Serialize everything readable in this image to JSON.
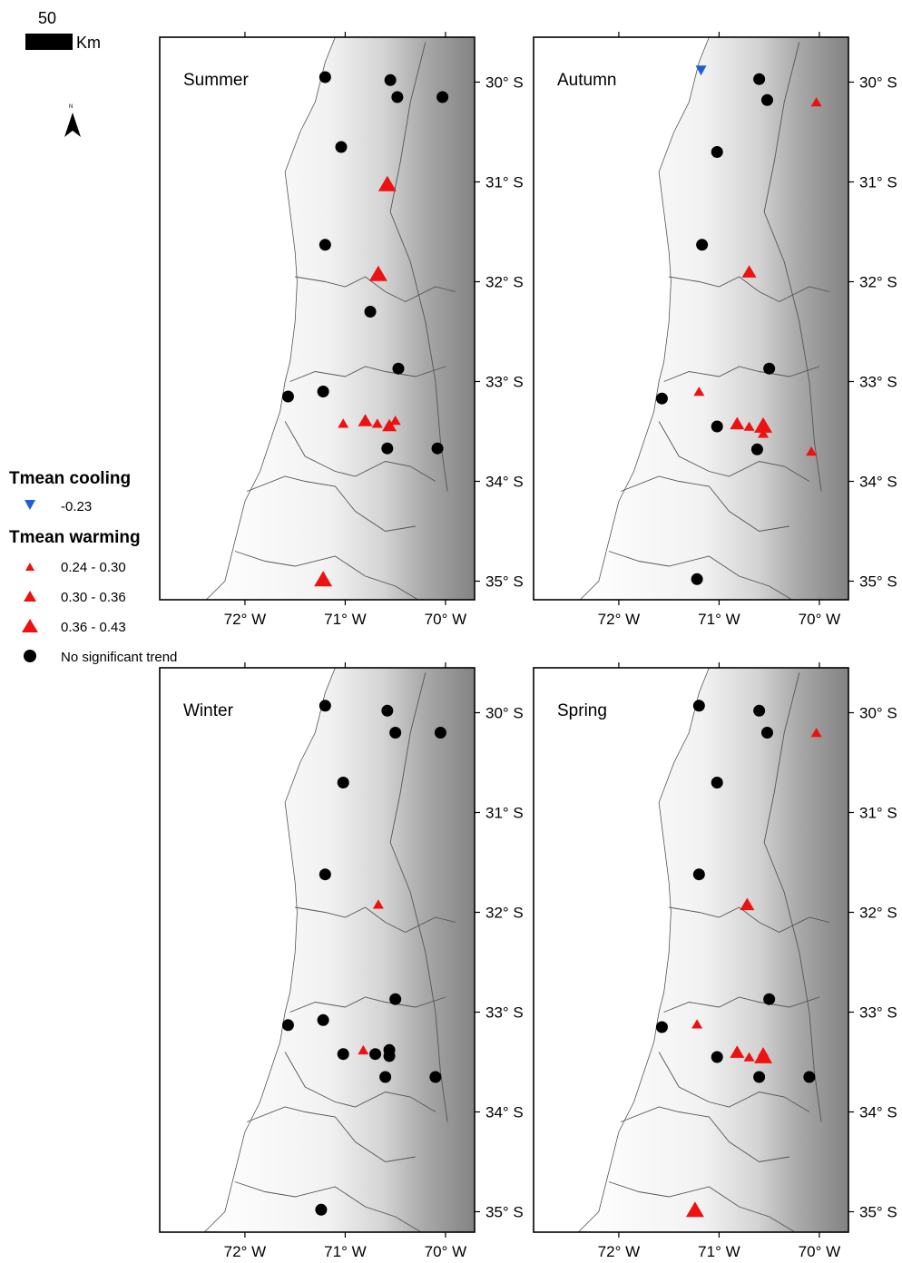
{
  "scale_bar": {
    "value": "50",
    "unit": "Km"
  },
  "north_arrow": {
    "label": "N",
    "icon": "north-arrow-icon"
  },
  "axes": {
    "lon_ticks": [
      {
        "lon": -72,
        "label": "72° W"
      },
      {
        "lon": -71,
        "label": "71° W"
      },
      {
        "lon": -70,
        "label": "70° W"
      }
    ],
    "lat_ticks": [
      {
        "lat": -30,
        "label": "30° S"
      },
      {
        "lat": -31,
        "label": "31° S"
      },
      {
        "lat": -32,
        "label": "32° S"
      },
      {
        "lat": -33,
        "label": "33° S"
      },
      {
        "lat": -34,
        "label": "34° S"
      },
      {
        "lat": -35,
        "label": "35° S"
      }
    ]
  },
  "legend": {
    "cooling_title": "Tmean cooling",
    "cooling_items": [
      {
        "label": "-0.23",
        "symbol": "triangle-down",
        "color": "#1f5fd6"
      }
    ],
    "warming_title": "Tmean warming",
    "warming_items": [
      {
        "label": "0.24 - 0.30",
        "symbol": "triangle-up",
        "size": "small",
        "color": "#ee1111"
      },
      {
        "label": "0.30 - 0.36",
        "symbol": "triangle-up",
        "size": "medium",
        "color": "#ee1111"
      },
      {
        "label": "0.36 - 0.43",
        "symbol": "triangle-up",
        "size": "large",
        "color": "#ee1111"
      }
    ],
    "no_trend": {
      "label": "No significant trend",
      "symbol": "circle",
      "color": "#000000"
    }
  },
  "colors": {
    "warming": "#ee1111",
    "cooling": "#1f5fd6",
    "no_trend": "#000000"
  },
  "panels": [
    {
      "title": "Summer",
      "stations": [
        {
          "lon": -71.2,
          "lat": -29.95,
          "type": "none"
        },
        {
          "lon": -70.55,
          "lat": -29.98,
          "type": "none"
        },
        {
          "lon": -70.48,
          "lat": -30.15,
          "type": "none"
        },
        {
          "lon": -70.03,
          "lat": -30.15,
          "type": "none"
        },
        {
          "lon": -71.04,
          "lat": -30.65,
          "type": "none"
        },
        {
          "lon": -70.58,
          "lat": -31.02,
          "type": "warm",
          "size": "large"
        },
        {
          "lon": -71.2,
          "lat": -31.63,
          "type": "none"
        },
        {
          "lon": -70.67,
          "lat": -31.92,
          "type": "warm",
          "size": "large"
        },
        {
          "lon": -70.75,
          "lat": -32.3,
          "type": "none"
        },
        {
          "lon": -70.47,
          "lat": -32.87,
          "type": "none"
        },
        {
          "lon": -71.57,
          "lat": -33.15,
          "type": "none"
        },
        {
          "lon": -71.22,
          "lat": -33.1,
          "type": "none"
        },
        {
          "lon": -71.02,
          "lat": -33.42,
          "type": "warm",
          "size": "small"
        },
        {
          "lon": -70.8,
          "lat": -33.39,
          "type": "warm",
          "size": "medium"
        },
        {
          "lon": -70.68,
          "lat": -33.42,
          "type": "warm",
          "size": "small"
        },
        {
          "lon": -70.56,
          "lat": -33.44,
          "type": "warm",
          "size": "medium"
        },
        {
          "lon": -70.5,
          "lat": -33.39,
          "type": "warm",
          "size": "small"
        },
        {
          "lon": -70.58,
          "lat": -33.67,
          "type": "none"
        },
        {
          "lon": -70.08,
          "lat": -33.67,
          "type": "none"
        },
        {
          "lon": -71.22,
          "lat": -34.98,
          "type": "warm",
          "size": "large"
        }
      ]
    },
    {
      "title": "Autumn",
      "stations": [
        {
          "lon": -71.18,
          "lat": -29.88,
          "type": "cool"
        },
        {
          "lon": -70.6,
          "lat": -29.97,
          "type": "none"
        },
        {
          "lon": -70.52,
          "lat": -30.18,
          "type": "none"
        },
        {
          "lon": -70.03,
          "lat": -30.2,
          "type": "warm",
          "size": "small"
        },
        {
          "lon": -71.02,
          "lat": -30.7,
          "type": "none"
        },
        {
          "lon": -71.17,
          "lat": -31.63,
          "type": "none"
        },
        {
          "lon": -70.7,
          "lat": -31.9,
          "type": "warm",
          "size": "medium"
        },
        {
          "lon": -70.5,
          "lat": -32.87,
          "type": "none"
        },
        {
          "lon": -71.57,
          "lat": -33.17,
          "type": "none"
        },
        {
          "lon": -71.2,
          "lat": -33.1,
          "type": "warm",
          "size": "small"
        },
        {
          "lon": -71.02,
          "lat": -33.45,
          "type": "none"
        },
        {
          "lon": -70.82,
          "lat": -33.42,
          "type": "warm",
          "size": "medium"
        },
        {
          "lon": -70.7,
          "lat": -33.45,
          "type": "warm",
          "size": "small"
        },
        {
          "lon": -70.56,
          "lat": -33.44,
          "type": "warm",
          "size": "large"
        },
        {
          "lon": -70.56,
          "lat": -33.52,
          "type": "warm",
          "size": "small"
        },
        {
          "lon": -70.62,
          "lat": -33.68,
          "type": "none"
        },
        {
          "lon": -70.08,
          "lat": -33.7,
          "type": "warm",
          "size": "small"
        },
        {
          "lon": -71.22,
          "lat": -34.98,
          "type": "none"
        }
      ]
    },
    {
      "title": "Winter",
      "stations": [
        {
          "lon": -71.2,
          "lat": -29.93,
          "type": "none"
        },
        {
          "lon": -70.58,
          "lat": -29.98,
          "type": "none"
        },
        {
          "lon": -70.5,
          "lat": -30.2,
          "type": "none"
        },
        {
          "lon": -70.05,
          "lat": -30.2,
          "type": "none"
        },
        {
          "lon": -71.02,
          "lat": -30.7,
          "type": "none"
        },
        {
          "lon": -71.2,
          "lat": -31.62,
          "type": "none"
        },
        {
          "lon": -70.67,
          "lat": -31.92,
          "type": "warm",
          "size": "small"
        },
        {
          "lon": -70.5,
          "lat": -32.87,
          "type": "none"
        },
        {
          "lon": -71.57,
          "lat": -33.13,
          "type": "none"
        },
        {
          "lon": -71.22,
          "lat": -33.08,
          "type": "none"
        },
        {
          "lon": -71.02,
          "lat": -33.42,
          "type": "none"
        },
        {
          "lon": -70.82,
          "lat": -33.38,
          "type": "warm",
          "size": "small"
        },
        {
          "lon": -70.7,
          "lat": -33.42,
          "type": "none"
        },
        {
          "lon": -70.56,
          "lat": -33.38,
          "type": "none"
        },
        {
          "lon": -70.56,
          "lat": -33.44,
          "type": "none"
        },
        {
          "lon": -70.6,
          "lat": -33.65,
          "type": "none"
        },
        {
          "lon": -70.1,
          "lat": -33.65,
          "type": "none"
        },
        {
          "lon": -71.24,
          "lat": -34.98,
          "type": "none"
        }
      ]
    },
    {
      "title": "Spring",
      "stations": [
        {
          "lon": -71.2,
          "lat": -29.93,
          "type": "none"
        },
        {
          "lon": -70.6,
          "lat": -29.98,
          "type": "none"
        },
        {
          "lon": -70.52,
          "lat": -30.2,
          "type": "none"
        },
        {
          "lon": -70.03,
          "lat": -30.2,
          "type": "warm",
          "size": "small"
        },
        {
          "lon": -71.02,
          "lat": -30.7,
          "type": "none"
        },
        {
          "lon": -71.2,
          "lat": -31.62,
          "type": "none"
        },
        {
          "lon": -70.72,
          "lat": -31.92,
          "type": "warm",
          "size": "medium"
        },
        {
          "lon": -70.5,
          "lat": -32.87,
          "type": "none"
        },
        {
          "lon": -71.57,
          "lat": -33.15,
          "type": "none"
        },
        {
          "lon": -71.22,
          "lat": -33.12,
          "type": "warm",
          "size": "small"
        },
        {
          "lon": -71.02,
          "lat": -33.45,
          "type": "none"
        },
        {
          "lon": -70.82,
          "lat": -33.4,
          "type": "warm",
          "size": "medium"
        },
        {
          "lon": -70.7,
          "lat": -33.45,
          "type": "warm",
          "size": "small"
        },
        {
          "lon": -70.56,
          "lat": -33.44,
          "type": "warm",
          "size": "large"
        },
        {
          "lon": -70.56,
          "lat": -33.4,
          "type": "warm",
          "size": "small"
        },
        {
          "lon": -70.6,
          "lat": -33.65,
          "type": "none"
        },
        {
          "lon": -70.1,
          "lat": -33.65,
          "type": "none"
        },
        {
          "lon": -71.24,
          "lat": -34.98,
          "type": "warm",
          "size": "large"
        }
      ]
    }
  ]
}
